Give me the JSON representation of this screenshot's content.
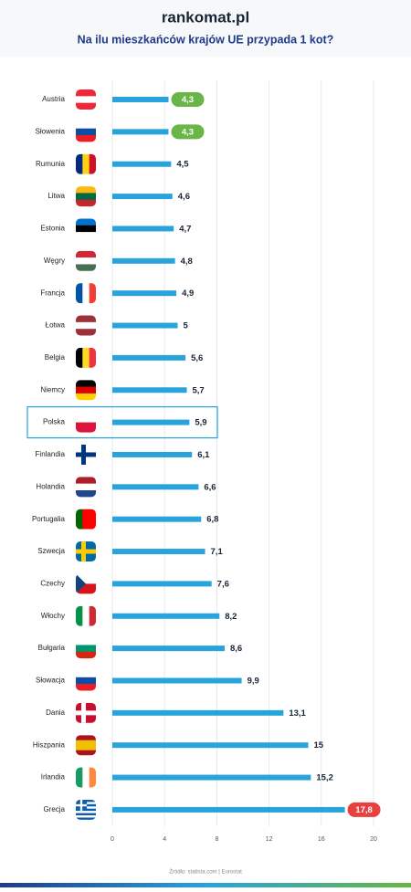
{
  "chart_data": {
    "type": "barh",
    "brand": "rankomat.pl",
    "title": "Na ilu mieszkańców krajów UE przypada 1 kot?",
    "source": "Źródło: statista.com | Eurostat",
    "categories": [
      "Austria",
      "Słowenia",
      "Rumunia",
      "Litwa",
      "Estonia",
      "Węgry",
      "Francja",
      "Łotwa",
      "Belgia",
      "Niemcy",
      "Polska",
      "Finlandia",
      "Holandia",
      "Portugalia",
      "Szwecja",
      "Czechy",
      "Włochy",
      "Bułgaria",
      "Słowacja",
      "Dania",
      "Hiszpania",
      "Irlandia",
      "Grecja"
    ],
    "values": [
      4.3,
      4.3,
      4.5,
      4.6,
      4.7,
      4.8,
      4.9,
      5,
      5.6,
      5.7,
      5.9,
      6.1,
      6.6,
      6.8,
      7.1,
      7.6,
      8.2,
      8.6,
      9.9,
      13.1,
      15,
      15.2,
      17.8
    ],
    "value_labels": [
      "4,3",
      "4,3",
      "4,5",
      "4,6",
      "4,7",
      "4,8",
      "4,9",
      "5",
      "5,6",
      "5,7",
      "5,9",
      "6,1",
      "6,6",
      "6,8",
      "7,1",
      "7,6",
      "8,2",
      "8,6",
      "9,9",
      "13,1",
      "15",
      "15,2",
      "17,8"
    ],
    "color": "#29a3dc",
    "xlim": [
      0,
      20
    ],
    "xticks": [
      0,
      4,
      8,
      12,
      16,
      20
    ],
    "grid": true
  }
}
